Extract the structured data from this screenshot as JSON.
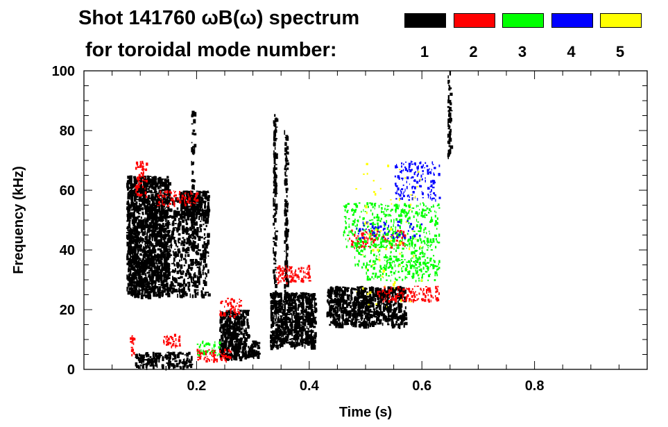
{
  "chart_data": {
    "type": "heatmap",
    "title_line1": "Shot 141760 ωB(ω) spectrum",
    "title_line2": "for toroidal mode number:",
    "xlabel": "Time (s)",
    "ylabel": "Frequency (kHz)",
    "xlim": [
      0,
      1.0
    ],
    "ylim": [
      0,
      100
    ],
    "xticks": [
      "0.2",
      "0.4",
      "0.6",
      "0.8"
    ],
    "xtick_values": [
      0.2,
      0.4,
      0.6,
      0.8
    ],
    "yticks": [
      "0",
      "20",
      "40",
      "60",
      "80",
      "100"
    ],
    "ytick_values": [
      0,
      20,
      40,
      60,
      80,
      100
    ],
    "legend": [
      {
        "mode": "1",
        "color": "#000000"
      },
      {
        "mode": "2",
        "color": "#ff0000"
      },
      {
        "mode": "3",
        "color": "#00ff00"
      },
      {
        "mode": "4",
        "color": "#0000ff"
      },
      {
        "mode": "5",
        "color": "#ffff00"
      }
    ],
    "features": [
      {
        "mode": 1,
        "t": [
          0.075,
          0.15
        ],
        "f": [
          25,
          65
        ],
        "density": 0.9
      },
      {
        "mode": 1,
        "t": [
          0.15,
          0.22
        ],
        "f": [
          25,
          58
        ],
        "density": 0.35
      },
      {
        "mode": 1,
        "t": [
          0.17,
          0.22
        ],
        "f": [
          52,
          60
        ],
        "density": 0.8
      },
      {
        "mode": 1,
        "t": [
          0.09,
          0.19
        ],
        "f": [
          1,
          6
        ],
        "density": 0.5
      },
      {
        "mode": 1,
        "t": [
          0.24,
          0.29
        ],
        "f": [
          4,
          20
        ],
        "density": 0.85
      },
      {
        "mode": 1,
        "t": [
          0.29,
          0.31
        ],
        "f": [
          4,
          10
        ],
        "density": 0.7
      },
      {
        "mode": 1,
        "t": [
          0.33,
          0.41
        ],
        "f": [
          8,
          26
        ],
        "density": 0.8
      },
      {
        "mode": 1,
        "t": [
          0.43,
          0.57
        ],
        "f": [
          15,
          28
        ],
        "density": 0.75
      },
      {
        "mode": 1,
        "t": [
          0.335,
          0.34
        ],
        "f": [
          20,
          86
        ],
        "density": 0.6
      },
      {
        "mode": 1,
        "t": [
          0.355,
          0.36
        ],
        "f": [
          20,
          82
        ],
        "density": 0.6
      },
      {
        "mode": 1,
        "t": [
          0.19,
          0.195
        ],
        "f": [
          40,
          89
        ],
        "density": 0.5
      },
      {
        "mode": 1,
        "t": [
          0.645,
          0.65
        ],
        "f": [
          72,
          100
        ],
        "density": 0.7
      },
      {
        "mode": 2,
        "t": [
          0.09,
          0.11
        ],
        "f": [
          58,
          70
        ],
        "density": 0.4
      },
      {
        "mode": 2,
        "t": [
          0.13,
          0.2
        ],
        "f": [
          55,
          60
        ],
        "density": 0.4
      },
      {
        "mode": 2,
        "t": [
          0.08,
          0.09
        ],
        "f": [
          5,
          12
        ],
        "density": 0.6
      },
      {
        "mode": 2,
        "t": [
          0.14,
          0.17
        ],
        "f": [
          8,
          12
        ],
        "density": 0.6
      },
      {
        "mode": 2,
        "t": [
          0.2,
          0.26
        ],
        "f": [
          3,
          7
        ],
        "density": 0.5
      },
      {
        "mode": 2,
        "t": [
          0.24,
          0.28
        ],
        "f": [
          18,
          24
        ],
        "density": 0.4
      },
      {
        "mode": 2,
        "t": [
          0.34,
          0.4
        ],
        "f": [
          29,
          35
        ],
        "density": 0.45
      },
      {
        "mode": 2,
        "t": [
          0.47,
          0.57
        ],
        "f": [
          41,
          47
        ],
        "density": 0.35
      },
      {
        "mode": 2,
        "t": [
          0.52,
          0.63
        ],
        "f": [
          23,
          28
        ],
        "density": 0.4
      },
      {
        "mode": 3,
        "t": [
          0.46,
          0.63
        ],
        "f": [
          41,
          56
        ],
        "density": 0.25
      },
      {
        "mode": 3,
        "t": [
          0.48,
          0.62
        ],
        "f": [
          34,
          44
        ],
        "density": 0.25
      },
      {
        "mode": 3,
        "t": [
          0.5,
          0.63
        ],
        "f": [
          30,
          37
        ],
        "density": 0.25
      },
      {
        "mode": 3,
        "t": [
          0.2,
          0.24
        ],
        "f": [
          5,
          10
        ],
        "density": 0.3
      },
      {
        "mode": 4,
        "t": [
          0.55,
          0.63
        ],
        "f": [
          57,
          70
        ],
        "density": 0.25
      },
      {
        "mode": 4,
        "t": [
          0.48,
          0.6
        ],
        "f": [
          44,
          50
        ],
        "density": 0.15
      },
      {
        "mode": 5,
        "t": [
          0.48,
          0.6
        ],
        "f": [
          20,
          70
        ],
        "density": 0.02
      }
    ]
  }
}
